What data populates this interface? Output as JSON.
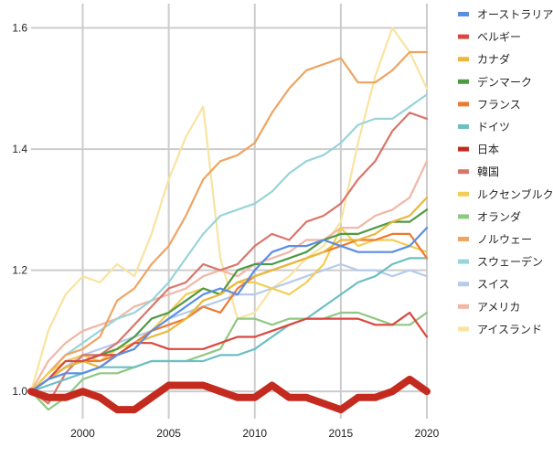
{
  "chart_data": {
    "type": "line",
    "title": "",
    "xlabel": "",
    "ylabel": "",
    "xlim": [
      1997,
      2020
    ],
    "ylim": [
      0.955,
      1.64
    ],
    "grid": true,
    "legend_position": "right",
    "x_ticks": [
      2000,
      2005,
      2010,
      2015,
      2020
    ],
    "y_ticks": [
      1.0,
      1.2,
      1.4,
      1.6
    ],
    "x_tick_labels": [
      "2000",
      "2005",
      "2010",
      "2015",
      "2020"
    ],
    "y_tick_labels": [
      "1.0",
      "1.2",
      "1.4",
      "1.6"
    ],
    "x": [
      1997,
      1998,
      1999,
      2000,
      2001,
      2002,
      2003,
      2004,
      2005,
      2006,
      2007,
      2008,
      2009,
      2010,
      2011,
      2012,
      2013,
      2014,
      2015,
      2016,
      2017,
      2018,
      2019,
      2020
    ],
    "series": [
      {
        "name": "オーストラリア",
        "color": "#5a8ee3",
        "values": [
          1.0,
          1.02,
          1.03,
          1.03,
          1.04,
          1.06,
          1.07,
          1.1,
          1.12,
          1.14,
          1.16,
          1.17,
          1.16,
          1.2,
          1.23,
          1.24,
          1.24,
          1.25,
          1.24,
          1.23,
          1.23,
          1.23,
          1.24,
          1.27
        ]
      },
      {
        "name": "ベルギー",
        "color": "#d9473f",
        "values": [
          1.0,
          1.02,
          1.05,
          1.05,
          1.06,
          1.06,
          1.08,
          1.08,
          1.07,
          1.07,
          1.07,
          1.08,
          1.09,
          1.09,
          1.1,
          1.11,
          1.12,
          1.12,
          1.12,
          1.12,
          1.11,
          1.11,
          1.13,
          1.09
        ]
      },
      {
        "name": "カナダ",
        "color": "#e9b83c",
        "values": [
          1.0,
          1.02,
          1.04,
          1.05,
          1.04,
          1.06,
          1.08,
          1.09,
          1.1,
          1.12,
          1.15,
          1.16,
          1.18,
          1.19,
          1.2,
          1.21,
          1.22,
          1.23,
          1.25,
          1.25,
          1.26,
          1.28,
          1.29,
          1.32
        ]
      },
      {
        "name": "デンマーク",
        "color": "#4e9a44",
        "values": [
          1.0,
          1.02,
          1.04,
          1.05,
          1.06,
          1.07,
          1.09,
          1.12,
          1.13,
          1.15,
          1.17,
          1.16,
          1.2,
          1.21,
          1.21,
          1.22,
          1.23,
          1.25,
          1.26,
          1.26,
          1.27,
          1.28,
          1.28,
          1.3
        ]
      },
      {
        "name": "フランス",
        "color": "#ec7a31",
        "values": [
          1.0,
          1.02,
          1.04,
          1.05,
          1.05,
          1.06,
          1.08,
          1.1,
          1.11,
          1.12,
          1.14,
          1.13,
          1.17,
          1.19,
          1.2,
          1.21,
          1.22,
          1.23,
          1.24,
          1.25,
          1.25,
          1.26,
          1.26,
          1.22
        ]
      },
      {
        "name": "ドイツ",
        "color": "#6bbfc4",
        "values": [
          1.0,
          1.01,
          1.02,
          1.03,
          1.04,
          1.04,
          1.04,
          1.05,
          1.05,
          1.05,
          1.05,
          1.06,
          1.06,
          1.07,
          1.09,
          1.11,
          1.12,
          1.14,
          1.16,
          1.18,
          1.19,
          1.21,
          1.22,
          1.22
        ]
      },
      {
        "name": "日本",
        "color": "#c42a1e",
        "values": [
          1.0,
          0.99,
          0.99,
          1.0,
          0.99,
          0.97,
          0.97,
          0.99,
          1.01,
          1.01,
          1.01,
          1.0,
          0.99,
          0.99,
          1.01,
          0.99,
          0.99,
          0.98,
          0.97,
          0.99,
          0.99,
          1.0,
          1.02,
          1.0
        ]
      },
      {
        "name": "韓国",
        "color": "#d9766a",
        "values": [
          1.0,
          0.98,
          1.03,
          1.06,
          1.06,
          1.08,
          1.11,
          1.14,
          1.17,
          1.18,
          1.21,
          1.2,
          1.21,
          1.24,
          1.26,
          1.25,
          1.28,
          1.29,
          1.31,
          1.35,
          1.38,
          1.43,
          1.46,
          1.45
        ]
      },
      {
        "name": "ルクセンブルク",
        "color": "#f3cd55",
        "values": [
          1.0,
          1.03,
          1.05,
          1.06,
          1.05,
          1.07,
          1.08,
          1.1,
          1.13,
          1.16,
          1.17,
          1.16,
          1.18,
          1.18,
          1.17,
          1.16,
          1.18,
          1.21,
          1.27,
          1.24,
          1.25,
          1.25,
          1.24,
          1.23
        ]
      },
      {
        "name": "オランダ",
        "color": "#8fc882",
        "values": [
          1.0,
          0.97,
          0.99,
          1.02,
          1.03,
          1.03,
          1.04,
          1.05,
          1.05,
          1.05,
          1.06,
          1.07,
          1.12,
          1.12,
          1.11,
          1.12,
          1.12,
          1.12,
          1.13,
          1.13,
          1.12,
          1.11,
          1.11,
          1.13
        ]
      },
      {
        "name": "ノルウェー",
        "color": "#eea462",
        "values": [
          1.0,
          1.03,
          1.06,
          1.07,
          1.09,
          1.15,
          1.17,
          1.21,
          1.24,
          1.29,
          1.35,
          1.38,
          1.39,
          1.41,
          1.46,
          1.5,
          1.53,
          1.54,
          1.55,
          1.51,
          1.51,
          1.53,
          1.56,
          1.56
        ]
      },
      {
        "name": "スウェーデン",
        "color": "#98d4d8",
        "values": [
          1.0,
          1.03,
          1.06,
          1.08,
          1.1,
          1.12,
          1.13,
          1.15,
          1.18,
          1.22,
          1.26,
          1.29,
          1.3,
          1.31,
          1.33,
          1.36,
          1.38,
          1.39,
          1.41,
          1.44,
          1.45,
          1.45,
          1.47,
          1.49
        ]
      },
      {
        "name": "スイス",
        "color": "#b6cbec",
        "values": [
          1.0,
          1.02,
          1.04,
          1.06,
          1.07,
          1.08,
          1.09,
          1.1,
          1.12,
          1.13,
          1.14,
          1.15,
          1.16,
          1.16,
          1.17,
          1.18,
          1.19,
          1.2,
          1.21,
          1.2,
          1.2,
          1.19,
          1.2,
          1.19
        ]
      },
      {
        "name": "アメリカ",
        "color": "#f1b6a5",
        "values": [
          1.0,
          1.05,
          1.08,
          1.1,
          1.11,
          1.12,
          1.14,
          1.15,
          1.16,
          1.17,
          1.19,
          1.2,
          1.19,
          1.21,
          1.22,
          1.23,
          1.25,
          1.25,
          1.27,
          1.27,
          1.29,
          1.3,
          1.32,
          1.38
        ]
      },
      {
        "name": "アイスランド",
        "color": "#f9e3a0",
        "values": [
          1.0,
          1.1,
          1.16,
          1.19,
          1.18,
          1.21,
          1.19,
          1.26,
          1.35,
          1.42,
          1.47,
          1.22,
          1.12,
          1.13,
          1.17,
          1.19,
          1.22,
          1.24,
          1.28,
          1.41,
          1.52,
          1.6,
          1.56,
          1.5
        ]
      }
    ]
  }
}
